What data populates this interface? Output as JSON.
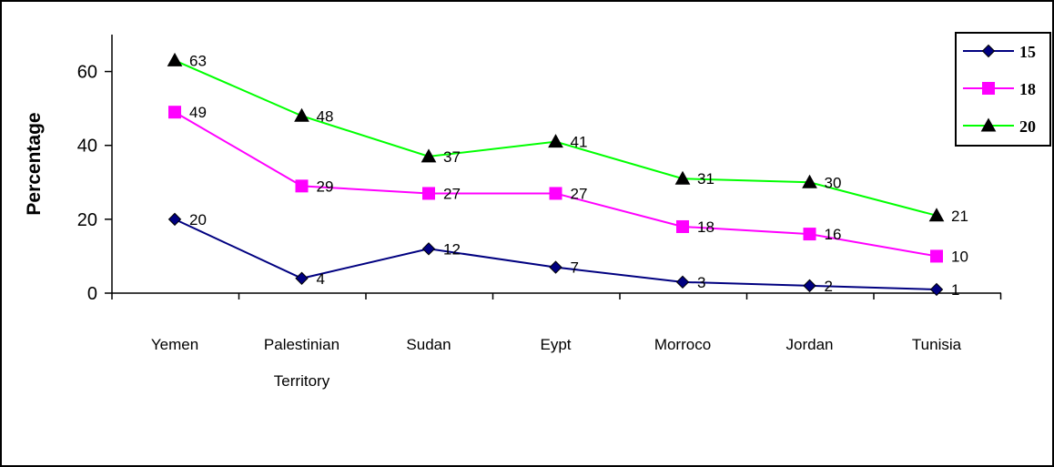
{
  "chart_data": {
    "type": "line",
    "title": "",
    "xlabel": "",
    "ylabel": "Percentage",
    "ylim": [
      0,
      70
    ],
    "yticks": [
      0,
      20,
      40,
      60
    ],
    "grid": false,
    "legend_position": "top-right",
    "categories": [
      [
        "Yemen"
      ],
      [
        "Palestinian",
        "Territory"
      ],
      [
        "Sudan"
      ],
      [
        "Eypt"
      ],
      [
        "Morroco"
      ],
      [
        "Jordan"
      ],
      [
        "Tunisia"
      ]
    ],
    "series": [
      {
        "name": "15",
        "color": "#000080",
        "marker": "diamond",
        "values": [
          20,
          4,
          12,
          7,
          3,
          2,
          1
        ]
      },
      {
        "name": "18",
        "color": "#ff00ff",
        "marker": "square",
        "values": [
          49,
          29,
          27,
          27,
          18,
          16,
          10
        ]
      },
      {
        "name": "20",
        "color": "#00ff00",
        "marker": "triangle",
        "values": [
          63,
          48,
          37,
          41,
          31,
          30,
          21
        ]
      }
    ]
  }
}
